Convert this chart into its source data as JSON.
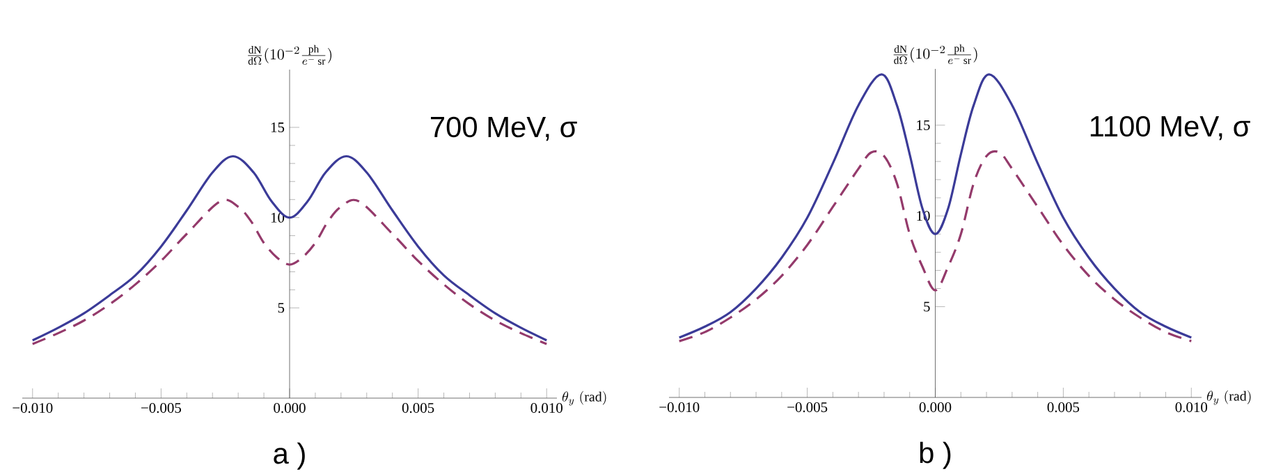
{
  "chart_data": [
    {
      "type": "line",
      "ylabel": "\\frac{\\mathrm{dN}}{\\mathrm{d}\\Omega}(10^{-2}\\frac{\\mathrm{ph}}{e^{-}\\,\\mathrm{sr}})",
      "xlabel": "\\theta_{y}\\;\\mathrm{(rad)}",
      "annotations": [
        "700 MeV, σ",
        "a )"
      ],
      "series": [
        {
          "color": "#3b3b98",
          "line_style": "solid",
          "x": [
            -0.01,
            -0.009,
            -0.008,
            -0.007,
            -0.006,
            -0.005,
            -0.004,
            -0.003,
            -0.0022,
            -0.0014,
            -0.0007,
            0,
            0.0007,
            0.0014,
            0.0022,
            0.003,
            0.004,
            0.005,
            0.006,
            0.007,
            0.008,
            0.009,
            0.01
          ],
          "values": [
            3.2,
            3.9,
            4.7,
            5.7,
            6.8,
            8.4,
            10.4,
            12.5,
            13.4,
            12.5,
            10.9,
            10.0,
            10.9,
            12.5,
            13.4,
            12.5,
            10.4,
            8.4,
            6.8,
            5.7,
            4.7,
            3.9,
            3.2
          ]
        },
        {
          "color": "#943a6b",
          "line_style": "dashed",
          "x": [
            -0.01,
            -0.009,
            -0.008,
            -0.007,
            -0.006,
            -0.005,
            -0.004,
            -0.0027,
            -0.002,
            -0.0015,
            -0.001,
            -0.0005,
            0,
            0.0005,
            0.001,
            0.0015,
            0.002,
            0.0027,
            0.004,
            0.005,
            0.006,
            0.007,
            0.008,
            0.009,
            0.01
          ],
          "values": [
            3.0,
            3.6,
            4.3,
            5.2,
            6.3,
            7.6,
            9.1,
            10.9,
            10.6,
            9.8,
            8.6,
            7.8,
            7.4,
            7.8,
            8.6,
            9.8,
            10.6,
            10.9,
            9.1,
            7.6,
            6.3,
            5.2,
            4.3,
            3.6,
            3.0
          ]
        }
      ],
      "xlim": [
        -0.0104,
        0.0104
      ],
      "ylim": [
        0,
        18.2
      ],
      "xticks": [
        {
          "value": -0.01,
          "label": "−0.010"
        },
        {
          "value": -0.005,
          "label": "−0.005"
        },
        {
          "value": 0,
          "label": "0.000"
        },
        {
          "value": 0.005,
          "label": "0.005"
        },
        {
          "value": 0.01,
          "label": "0.010"
        }
      ],
      "yticks": [
        5,
        10,
        15
      ]
    },
    {
      "type": "line",
      "ylabel": "\\frac{\\mathrm{dN}}{\\mathrm{d}\\Omega}(10^{-2}\\frac{\\mathrm{ph}}{e^{-}\\,\\mathrm{sr}})",
      "xlabel": "\\theta_{y}\\;\\mathrm{(rad)}",
      "annotations": [
        "1100 MeV, σ",
        "b )"
      ],
      "series": [
        {
          "color": "#3b3b98",
          "line_style": "solid",
          "x": [
            -0.01,
            -0.009,
            -0.008,
            -0.007,
            -0.006,
            -0.005,
            -0.004,
            -0.003,
            -0.0021,
            -0.0015,
            -0.001,
            -0.0005,
            0,
            0.0005,
            0.001,
            0.0015,
            0.0021,
            0.003,
            0.004,
            0.005,
            0.006,
            0.007,
            0.008,
            0.009,
            0.01
          ],
          "values": [
            3.3,
            3.9,
            4.7,
            6.0,
            7.7,
            9.9,
            12.9,
            16.1,
            17.8,
            16.1,
            13.4,
            10.4,
            9.0,
            10.4,
            13.4,
            16.1,
            17.8,
            16.1,
            12.9,
            9.9,
            7.7,
            6.0,
            4.7,
            3.9,
            3.3
          ]
        },
        {
          "color": "#943a6b",
          "line_style": "dashed",
          "x": [
            -0.01,
            -0.009,
            -0.008,
            -0.007,
            -0.006,
            -0.005,
            -0.004,
            -0.003,
            -0.0025,
            -0.002,
            -0.0015,
            -0.001,
            -0.0005,
            0,
            0.0005,
            0.001,
            0.0015,
            0.002,
            0.0025,
            0.003,
            0.004,
            0.005,
            0.006,
            0.007,
            0.008,
            0.009,
            0.01
          ],
          "values": [
            3.1,
            3.6,
            4.4,
            5.4,
            6.7,
            8.4,
            10.5,
            12.6,
            13.5,
            13.3,
            11.8,
            9.0,
            7.2,
            5.9,
            7.2,
            9.0,
            11.8,
            13.3,
            13.5,
            12.6,
            10.5,
            8.4,
            6.7,
            5.4,
            4.4,
            3.6,
            3.1
          ]
        }
      ],
      "xlim": [
        -0.0104,
        0.0104
      ],
      "ylim": [
        0,
        18.1
      ],
      "xticks": [
        {
          "value": -0.01,
          "label": "−0.010"
        },
        {
          "value": -0.005,
          "label": "−0.005"
        },
        {
          "value": 0,
          "label": "0.000"
        },
        {
          "value": 0.005,
          "label": "0.005"
        },
        {
          "value": 0.01,
          "label": "0.010"
        }
      ],
      "yticks": [
        5,
        10,
        15
      ]
    }
  ]
}
